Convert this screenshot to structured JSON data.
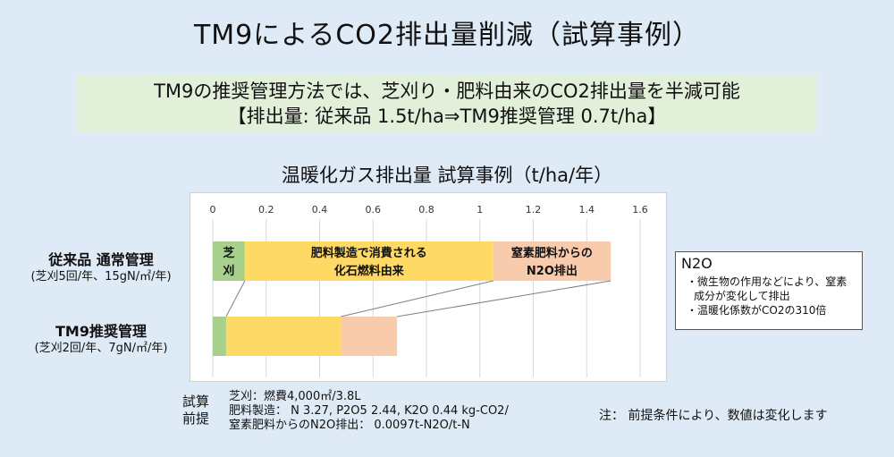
{
  "title": "TM9によるCO2排出量削減（試算事例）",
  "banner": {
    "line1": "TM9の推奨管理方法では、芝刈り・肥料由来のCO2排出量を半減可能",
    "line2": "【排出量: 従来品 1.5t/ha⇒TM9推奨管理 0.7t/ha】"
  },
  "chart_data": {
    "type": "bar",
    "orientation": "horizontal",
    "stacked": true,
    "title": "温暖化ガス排出量 試算事例（t/ha/年）",
    "xlim": [
      0,
      1.6
    ],
    "xticks": [
      "0",
      "0.2",
      "0.4",
      "0.6",
      "0.8",
      "1",
      "1.2",
      "1.4",
      "1.6"
    ],
    "categories": [
      {
        "name": "従来品 通常管理",
        "sub": "(芝刈5回/年、15gN/㎡/年)"
      },
      {
        "name": "TM9推奨管理",
        "sub": "(芝刈2回/年、7gN/㎡/年)"
      }
    ],
    "series": [
      {
        "label": "芝刈",
        "color": "#a8d08d",
        "values": [
          0.12,
          0.05
        ]
      },
      {
        "label": "肥料製造で消費される化石燃料由来",
        "color": "#ffd966",
        "values": [
          0.93,
          0.43
        ]
      },
      {
        "label": "窒素肥料からのN2O排出",
        "color": "#f8cbad",
        "values": [
          0.44,
          0.21
        ]
      }
    ],
    "segment_labels": [
      [
        "芝",
        "刈"
      ],
      [
        "肥料製造で消費される",
        "化石燃料由来"
      ],
      [
        "窒素肥料からの",
        "N2O排出"
      ]
    ],
    "grid": true
  },
  "n2o_box": {
    "head": "N2O",
    "item1": "・微生物の作用などにより、窒素成分が変化して排出",
    "item2": "・温暖化係数がCO2の310倍"
  },
  "basis": {
    "label_line1": "試算",
    "label_line2": "前提",
    "line1": "芝刈：燃費4,000㎡/3.8L",
    "line2": "肥料製造： N 3.27, P2O5 2.44, K2O 0.44 kg-CO2/",
    "line3": "窒素肥料からのN2O排出： 0.0097t-N2O/t-N"
  },
  "note": "注： 前提条件により、数値は変化します"
}
